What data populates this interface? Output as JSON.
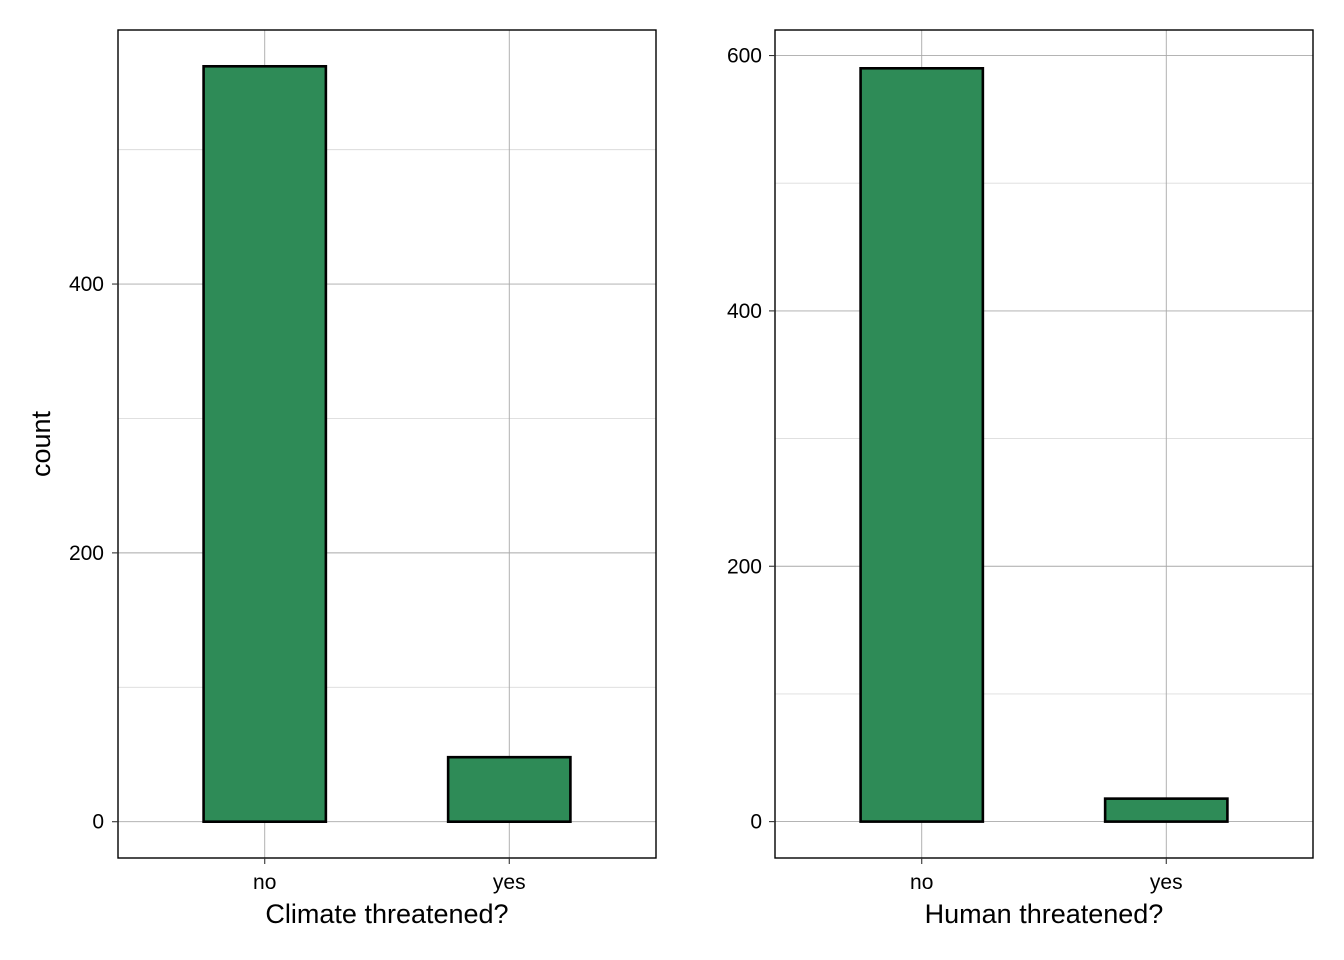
{
  "chart_data": [
    {
      "type": "bar",
      "categories": [
        "no",
        "yes"
      ],
      "values": [
        562,
        48
      ],
      "xlabel": "Climate threatened?",
      "ylabel": "count",
      "ylim": [
        -27,
        589
      ],
      "yticks": [
        0,
        200,
        400
      ],
      "grid": true,
      "bar_color": "#2E8B57"
    },
    {
      "type": "bar",
      "categories": [
        "no",
        "yes"
      ],
      "values": [
        590,
        18
      ],
      "xlabel": "Human threatened?",
      "ylabel": "",
      "ylim": [
        -28.5,
        620
      ],
      "yticks": [
        0,
        200,
        400,
        600
      ],
      "grid": true,
      "bar_color": "#2E8B57"
    }
  ]
}
